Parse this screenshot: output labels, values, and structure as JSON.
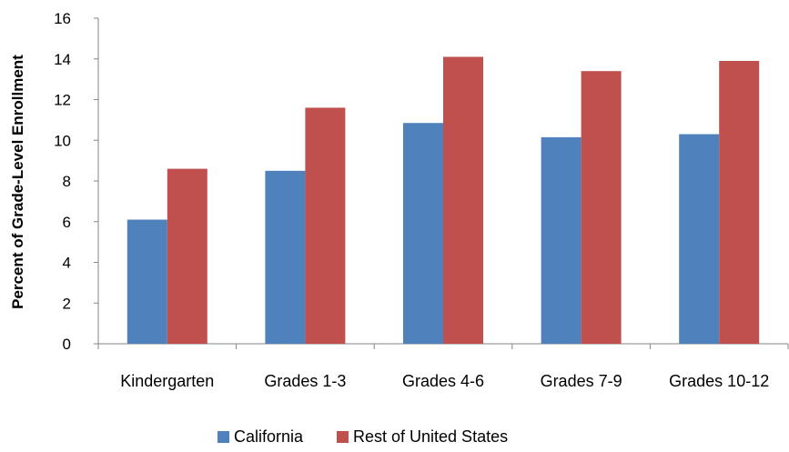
{
  "chart_data": {
    "type": "bar",
    "title": "",
    "xlabel": "",
    "ylabel": "Percent of Grade-Level Enrollment",
    "ylim": [
      0,
      16
    ],
    "yticks": [
      0,
      2,
      4,
      6,
      8,
      10,
      12,
      14,
      16
    ],
    "grid": false,
    "legend_position": "bottom",
    "categories": [
      "Kindergarten",
      "Grades 1-3",
      "Grades 4-6",
      "Grades 7-9",
      "Grades 10-12"
    ],
    "series": [
      {
        "name": "California",
        "color": "#4f81bd",
        "values": [
          6.1,
          8.5,
          10.85,
          10.15,
          10.3
        ]
      },
      {
        "name": "Rest of United States",
        "color": "#c0504d",
        "values": [
          8.6,
          11.6,
          14.1,
          13.4,
          13.9
        ]
      }
    ]
  }
}
